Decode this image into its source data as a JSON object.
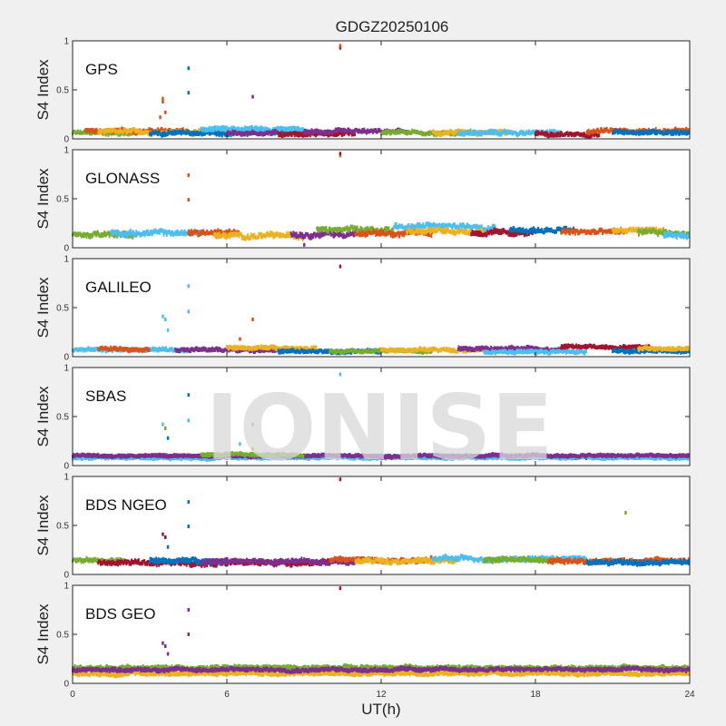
{
  "title": "GDGZ20250106",
  "watermark": "IONISE",
  "chart_data": {
    "type": "scatter",
    "xlabel": "UT(h)",
    "ylabel": "S4 Index",
    "xlim": [
      0,
      24
    ],
    "ylim": [
      0,
      1
    ],
    "xticks": [
      "0",
      "6",
      "12",
      "18",
      "24"
    ],
    "yticks": [
      "0",
      "0.5",
      "1"
    ],
    "grid": false,
    "colors": [
      "#0072bd",
      "#d95319",
      "#edb120",
      "#7e2f8e",
      "#77ac30",
      "#4dbeee",
      "#a2142f"
    ],
    "panels": [
      {
        "label": "GPS",
        "baseline": 0.06,
        "noise": 0.03,
        "segments": [
          {
            "color": 4,
            "start": 0,
            "end": 2.5,
            "level": 0.06
          },
          {
            "color": 1,
            "start": 0.5,
            "end": 4.5,
            "level": 0.08
          },
          {
            "color": 2,
            "start": 1,
            "end": 6,
            "level": 0.07
          },
          {
            "color": 0,
            "start": 3,
            "end": 9,
            "level": 0.06
          },
          {
            "color": 5,
            "start": 5,
            "end": 9,
            "level": 0.1
          },
          {
            "color": 3,
            "start": 6,
            "end": 8,
            "level": 0.06
          },
          {
            "color": 6,
            "start": 8,
            "end": 11,
            "level": 0.05
          },
          {
            "color": 3,
            "start": 9,
            "end": 13,
            "level": 0.07
          },
          {
            "color": 4,
            "start": 12,
            "end": 16,
            "level": 0.06
          },
          {
            "color": 2,
            "start": 14,
            "end": 17,
            "level": 0.07
          },
          {
            "color": 5,
            "start": 15,
            "end": 19,
            "level": 0.06
          },
          {
            "color": 6,
            "start": 18,
            "end": 20.5,
            "level": 0.05
          },
          {
            "color": 1,
            "start": 20,
            "end": 24,
            "level": 0.08
          },
          {
            "color": 0,
            "start": 21,
            "end": 24,
            "level": 0.07
          }
        ],
        "spikes": [
          {
            "x": 3.5,
            "y": 0.41,
            "color": 1
          },
          {
            "x": 3.5,
            "y": 0.38,
            "color": 1
          },
          {
            "x": 3.4,
            "y": 0.22,
            "color": 1
          },
          {
            "x": 3.6,
            "y": 0.27,
            "color": 1
          },
          {
            "x": 4.5,
            "y": 0.72,
            "color": 0
          },
          {
            "x": 4.5,
            "y": 0.47,
            "color": 0
          },
          {
            "x": 7.0,
            "y": 0.43,
            "color": 3
          },
          {
            "x": 10.4,
            "y": 0.93,
            "color": 6
          },
          {
            "x": 10.4,
            "y": 0.95,
            "color": 1
          }
        ]
      },
      {
        "label": "GLONASS",
        "baseline": 0.14,
        "noise": 0.04,
        "segments": [
          {
            "color": 4,
            "start": 0,
            "end": 2.5,
            "level": 0.13
          },
          {
            "color": 5,
            "start": 1.5,
            "end": 5,
            "level": 0.15
          },
          {
            "color": 1,
            "start": 4.5,
            "end": 6.5,
            "level": 0.16
          },
          {
            "color": 2,
            "start": 5.5,
            "end": 9,
            "level": 0.12
          },
          {
            "color": 3,
            "start": 8.5,
            "end": 11,
            "level": 0.14
          },
          {
            "color": 4,
            "start": 9.5,
            "end": 12.5,
            "level": 0.18
          },
          {
            "color": 1,
            "start": 11,
            "end": 14,
            "level": 0.15
          },
          {
            "color": 5,
            "start": 12.5,
            "end": 16.5,
            "level": 0.22
          },
          {
            "color": 2,
            "start": 13,
            "end": 16,
            "level": 0.17
          },
          {
            "color": 6,
            "start": 15.5,
            "end": 18,
            "level": 0.15
          },
          {
            "color": 0,
            "start": 17,
            "end": 19.5,
            "level": 0.18
          },
          {
            "color": 1,
            "start": 19,
            "end": 21.5,
            "level": 0.16
          },
          {
            "color": 2,
            "start": 21,
            "end": 23,
            "level": 0.18
          },
          {
            "color": 4,
            "start": 22,
            "end": 24,
            "level": 0.15
          },
          {
            "color": 5,
            "start": 23,
            "end": 24,
            "level": 0.13
          }
        ],
        "spikes": [
          {
            "x": 4.5,
            "y": 0.74,
            "color": 1
          },
          {
            "x": 4.5,
            "y": 0.49,
            "color": 1
          },
          {
            "x": 10.4,
            "y": 0.94,
            "color": 4
          },
          {
            "x": 10.4,
            "y": 0.96,
            "color": 6
          },
          {
            "x": 9.0,
            "y": 0.03,
            "color": 3
          }
        ]
      },
      {
        "label": "GALILEO",
        "baseline": 0.06,
        "noise": 0.025,
        "segments": [
          {
            "color": 5,
            "start": 0,
            "end": 4.5,
            "level": 0.07
          },
          {
            "color": 1,
            "start": 1,
            "end": 3,
            "level": 0.08
          },
          {
            "color": 3,
            "start": 4,
            "end": 8.5,
            "level": 0.07
          },
          {
            "color": 2,
            "start": 6,
            "end": 9.5,
            "level": 0.09
          },
          {
            "color": 0,
            "start": 8,
            "end": 12,
            "level": 0.05
          },
          {
            "color": 4,
            "start": 10,
            "end": 14,
            "level": 0.06
          },
          {
            "color": 2,
            "start": 12,
            "end": 16,
            "level": 0.07
          },
          {
            "color": 3,
            "start": 15,
            "end": 19,
            "level": 0.08
          },
          {
            "color": 5,
            "start": 16,
            "end": 20,
            "level": 0.05
          },
          {
            "color": 6,
            "start": 19,
            "end": 22.5,
            "level": 0.1
          },
          {
            "color": 0,
            "start": 21,
            "end": 24,
            "level": 0.06
          },
          {
            "color": 2,
            "start": 22,
            "end": 24,
            "level": 0.08
          }
        ],
        "spikes": [
          {
            "x": 3.5,
            "y": 0.41,
            "color": 5
          },
          {
            "x": 3.6,
            "y": 0.38,
            "color": 5
          },
          {
            "x": 3.7,
            "y": 0.27,
            "color": 5
          },
          {
            "x": 4.5,
            "y": 0.72,
            "color": 5
          },
          {
            "x": 4.5,
            "y": 0.46,
            "color": 5
          },
          {
            "x": 6.5,
            "y": 0.18,
            "color": 1
          },
          {
            "x": 7.0,
            "y": 0.38,
            "color": 1
          },
          {
            "x": 10.4,
            "y": 0.92,
            "color": 6
          }
        ]
      },
      {
        "label": "SBAS",
        "baseline": 0.09,
        "noise": 0.02,
        "segments": [
          {
            "color": 0,
            "start": 0,
            "end": 24,
            "level": 0.09
          },
          {
            "color": 5,
            "start": 0,
            "end": 24,
            "level": 0.08
          },
          {
            "color": 3,
            "start": 0,
            "end": 24,
            "level": 0.1
          },
          {
            "color": 4,
            "start": 5,
            "end": 9,
            "level": 0.11
          }
        ],
        "spikes": [
          {
            "x": 3.5,
            "y": 0.42,
            "color": 5
          },
          {
            "x": 3.6,
            "y": 0.38,
            "color": 4
          },
          {
            "x": 3.7,
            "y": 0.28,
            "color": 0
          },
          {
            "x": 4.5,
            "y": 0.72,
            "color": 0
          },
          {
            "x": 4.5,
            "y": 0.46,
            "color": 5
          },
          {
            "x": 6.5,
            "y": 0.22,
            "color": 5
          },
          {
            "x": 7.0,
            "y": 0.42,
            "color": 4
          },
          {
            "x": 7.0,
            "y": 0.17,
            "color": 4
          },
          {
            "x": 10.4,
            "y": 0.93,
            "color": 5
          }
        ]
      },
      {
        "label": "BDS NGEO",
        "baseline": 0.13,
        "noise": 0.035,
        "segments": [
          {
            "color": 4,
            "start": 0,
            "end": 2,
            "level": 0.14
          },
          {
            "color": 6,
            "start": 1,
            "end": 10,
            "level": 0.12
          },
          {
            "color": 0,
            "start": 3,
            "end": 6,
            "level": 0.14
          },
          {
            "color": 3,
            "start": 5,
            "end": 11,
            "level": 0.13
          },
          {
            "color": 1,
            "start": 10,
            "end": 14,
            "level": 0.15
          },
          {
            "color": 2,
            "start": 11,
            "end": 15,
            "level": 0.14
          },
          {
            "color": 5,
            "start": 14,
            "end": 20,
            "level": 0.16
          },
          {
            "color": 4,
            "start": 16,
            "end": 19,
            "level": 0.15
          },
          {
            "color": 1,
            "start": 18.5,
            "end": 24,
            "level": 0.14
          },
          {
            "color": 0,
            "start": 20,
            "end": 24,
            "level": 0.12
          }
        ],
        "spikes": [
          {
            "x": 3.5,
            "y": 0.41,
            "color": 6
          },
          {
            "x": 3.6,
            "y": 0.38,
            "color": 6
          },
          {
            "x": 3.7,
            "y": 0.28,
            "color": 0
          },
          {
            "x": 4.5,
            "y": 0.74,
            "color": 0
          },
          {
            "x": 4.5,
            "y": 0.49,
            "color": 0
          },
          {
            "x": 10.4,
            "y": 0.97,
            "color": 6
          },
          {
            "x": 21.5,
            "y": 0.63,
            "color": 4
          }
        ]
      },
      {
        "label": "BDS GEO",
        "baseline": 0.12,
        "noise": 0.025,
        "segments": [
          {
            "color": 4,
            "start": 0,
            "end": 24,
            "level": 0.16
          },
          {
            "color": 2,
            "start": 0,
            "end": 24,
            "level": 0.1
          },
          {
            "color": 3,
            "start": 0,
            "end": 24,
            "level": 0.14
          }
        ],
        "spikes": [
          {
            "x": 3.5,
            "y": 0.41,
            "color": 3
          },
          {
            "x": 3.6,
            "y": 0.38,
            "color": 3
          },
          {
            "x": 3.7,
            "y": 0.3,
            "color": 3
          },
          {
            "x": 4.5,
            "y": 0.75,
            "color": 3
          },
          {
            "x": 4.5,
            "y": 0.5,
            "color": 3
          },
          {
            "x": 10.4,
            "y": 0.97,
            "color": 6
          }
        ]
      }
    ]
  }
}
